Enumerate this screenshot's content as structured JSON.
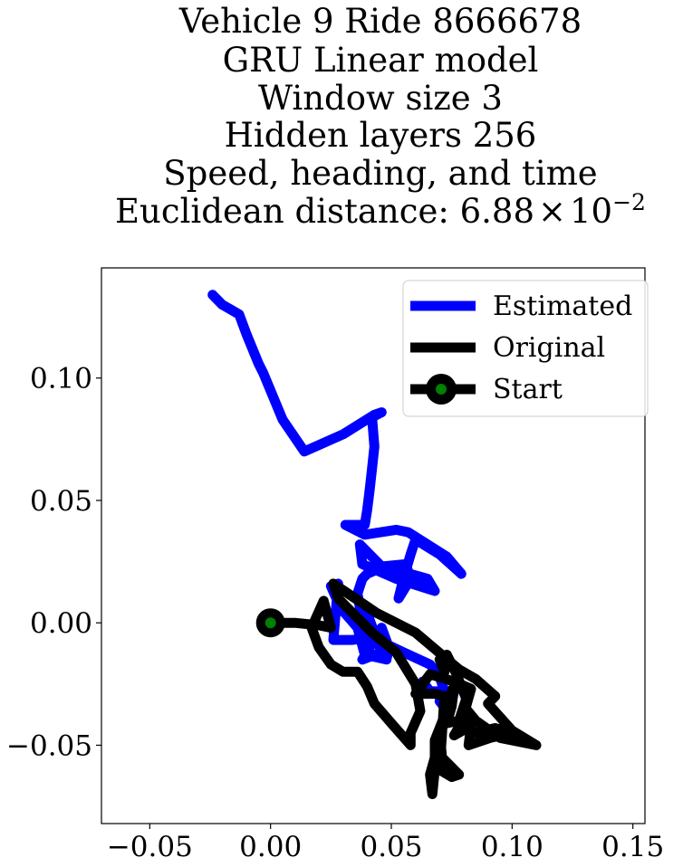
{
  "chart_data": {
    "type": "line",
    "title_lines": [
      "Vehicle 9 Ride 8666678",
      "GRU Linear model",
      "Window size 3",
      "Hidden layers 256",
      "Speed, heading, and time"
    ],
    "title_distance_prefix": "Euclidean distance: 6.88",
    "title_distance_times": "×",
    "title_distance_base": "10",
    "title_distance_exponent": "−2",
    "xlim": [
      -0.07,
      0.155
    ],
    "ylim": [
      -0.082,
      0.145
    ],
    "xticks": [
      -0.05,
      0.0,
      0.05,
      0.1,
      0.15
    ],
    "xtick_labels": [
      "−0.05",
      "0.00",
      "0.05",
      "0.10",
      "0.15"
    ],
    "yticks": [
      -0.05,
      0.0,
      0.05,
      0.1
    ],
    "ytick_labels": [
      "−0.05",
      "0.00",
      "0.05",
      "0.10"
    ],
    "grid": false,
    "legend_position": "top-right",
    "legend": [
      {
        "label": "Estimated",
        "key": "estimated"
      },
      {
        "label": "Original",
        "key": "original"
      },
      {
        "label": "Start",
        "key": "start"
      }
    ],
    "series": [
      {
        "key": "estimated",
        "name": "Estimated",
        "color": "#0000ff",
        "points": [
          [
            -0.024,
            0.134
          ],
          [
            -0.02,
            0.13
          ],
          [
            -0.013,
            0.126
          ],
          [
            -0.01,
            0.118
          ],
          [
            -0.005,
            0.106
          ],
          [
            -0.003,
            0.102
          ],
          [
            0.005,
            0.083
          ],
          [
            0.014,
            0.07
          ],
          [
            0.03,
            0.077
          ],
          [
            0.043,
            0.085
          ],
          [
            0.046,
            0.086
          ],
          [
            0.042,
            0.084
          ],
          [
            0.043,
            0.072
          ],
          [
            0.042,
            0.063
          ],
          [
            0.041,
            0.054
          ],
          [
            0.04,
            0.046
          ],
          [
            0.039,
            0.04
          ],
          [
            0.031,
            0.04
          ],
          [
            0.039,
            0.036
          ],
          [
            0.052,
            0.038
          ],
          [
            0.057,
            0.037
          ],
          [
            0.073,
            0.027
          ],
          [
            0.079,
            0.02
          ],
          [
            0.07,
            0.028
          ],
          [
            0.06,
            0.034
          ],
          [
            0.058,
            0.028
          ],
          [
            0.055,
            0.018
          ],
          [
            0.053,
            0.01
          ],
          [
            0.058,
            0.018
          ],
          [
            0.056,
            0.024
          ],
          [
            0.046,
            0.023
          ],
          [
            0.037,
            0.032
          ],
          [
            0.038,
            0.024
          ],
          [
            0.052,
            0.018
          ],
          [
            0.068,
            0.013
          ],
          [
            0.065,
            0.018
          ],
          [
            0.047,
            0.023
          ],
          [
            0.04,
            0.02
          ],
          [
            0.038,
            0.018
          ],
          [
            0.036,
            0.012
          ],
          [
            0.038,
            0.0
          ],
          [
            0.04,
            -0.005
          ],
          [
            0.04,
            0.004
          ],
          [
            0.046,
            -0.012
          ],
          [
            0.038,
            -0.015
          ],
          [
            0.046,
            -0.002
          ],
          [
            0.049,
            -0.01
          ],
          [
            0.048,
            -0.015
          ],
          [
            0.039,
            -0.013
          ],
          [
            0.036,
            -0.002
          ],
          [
            0.029,
            0.006
          ],
          [
            0.025,
            0.015
          ],
          [
            0.028,
            0.016
          ],
          [
            0.026,
            -0.007
          ],
          [
            0.03,
            -0.007
          ],
          [
            0.034,
            -0.007
          ],
          [
            0.042,
            -0.006
          ],
          [
            0.055,
            -0.012
          ],
          [
            0.066,
            -0.017
          ],
          [
            0.07,
            -0.022
          ],
          [
            0.072,
            -0.028
          ],
          [
            0.07,
            -0.032
          ],
          [
            0.074,
            -0.037
          ],
          [
            0.076,
            -0.028
          ],
          [
            0.07,
            -0.028
          ],
          [
            0.066,
            -0.028
          ],
          [
            0.063,
            -0.024
          ]
        ]
      },
      {
        "key": "original",
        "name": "Original",
        "color": "#000000",
        "points": [
          [
            0.0,
            0.0
          ],
          [
            0.01,
            0.0
          ],
          [
            0.02,
            -0.001
          ],
          [
            0.025,
            -0.002
          ],
          [
            0.022,
            0.009
          ],
          [
            0.017,
            -0.002
          ],
          [
            0.02,
            -0.01
          ],
          [
            0.025,
            -0.017
          ],
          [
            0.03,
            -0.02
          ],
          [
            0.036,
            -0.02
          ],
          [
            0.04,
            -0.026
          ],
          [
            0.043,
            -0.033
          ],
          [
            0.05,
            -0.041
          ],
          [
            0.058,
            -0.05
          ],
          [
            0.058,
            -0.045
          ],
          [
            0.062,
            -0.036
          ],
          [
            0.06,
            -0.025
          ],
          [
            0.052,
            -0.012
          ],
          [
            0.042,
            -0.004
          ],
          [
            0.034,
            0.004
          ],
          [
            0.028,
            0.01
          ],
          [
            0.026,
            0.016
          ],
          [
            0.044,
            0.004
          ],
          [
            0.06,
            -0.004
          ],
          [
            0.078,
            -0.019
          ],
          [
            0.085,
            -0.023
          ],
          [
            0.093,
            -0.03
          ],
          [
            0.09,
            -0.033
          ],
          [
            0.1,
            -0.044
          ],
          [
            0.11,
            -0.05
          ],
          [
            0.095,
            -0.047
          ],
          [
            0.085,
            -0.04
          ],
          [
            0.08,
            -0.034
          ],
          [
            0.079,
            -0.038
          ],
          [
            0.084,
            -0.045
          ],
          [
            0.093,
            -0.043
          ],
          [
            0.1,
            -0.045
          ],
          [
            0.091,
            -0.047
          ],
          [
            0.082,
            -0.05
          ],
          [
            0.083,
            -0.042
          ],
          [
            0.076,
            -0.046
          ],
          [
            0.079,
            -0.041
          ],
          [
            0.083,
            -0.027
          ],
          [
            0.076,
            -0.024
          ],
          [
            0.066,
            -0.021
          ],
          [
            0.06,
            -0.029
          ],
          [
            0.068,
            -0.029
          ],
          [
            0.072,
            -0.03
          ],
          [
            0.071,
            -0.045
          ],
          [
            0.07,
            -0.06
          ],
          [
            0.075,
            -0.063
          ],
          [
            0.078,
            -0.062
          ],
          [
            0.071,
            -0.055
          ],
          [
            0.07,
            -0.045
          ],
          [
            0.068,
            -0.055
          ],
          [
            0.066,
            -0.062
          ],
          [
            0.067,
            -0.07
          ],
          [
            0.068,
            -0.06
          ],
          [
            0.068,
            -0.048
          ],
          [
            0.072,
            -0.038
          ],
          [
            0.074,
            -0.03
          ],
          [
            0.076,
            -0.026
          ],
          [
            0.075,
            -0.034
          ],
          [
            0.073,
            -0.041
          ],
          [
            0.078,
            -0.04
          ],
          [
            0.081,
            -0.031
          ],
          [
            0.077,
            -0.021
          ],
          [
            0.073,
            -0.013
          ],
          [
            0.07,
            -0.015
          ],
          [
            0.072,
            -0.02
          ]
        ]
      }
    ],
    "start_point": {
      "x": 0.0,
      "y": 0.0,
      "outer_color": "#000000",
      "inner_color": "#008000"
    }
  }
}
